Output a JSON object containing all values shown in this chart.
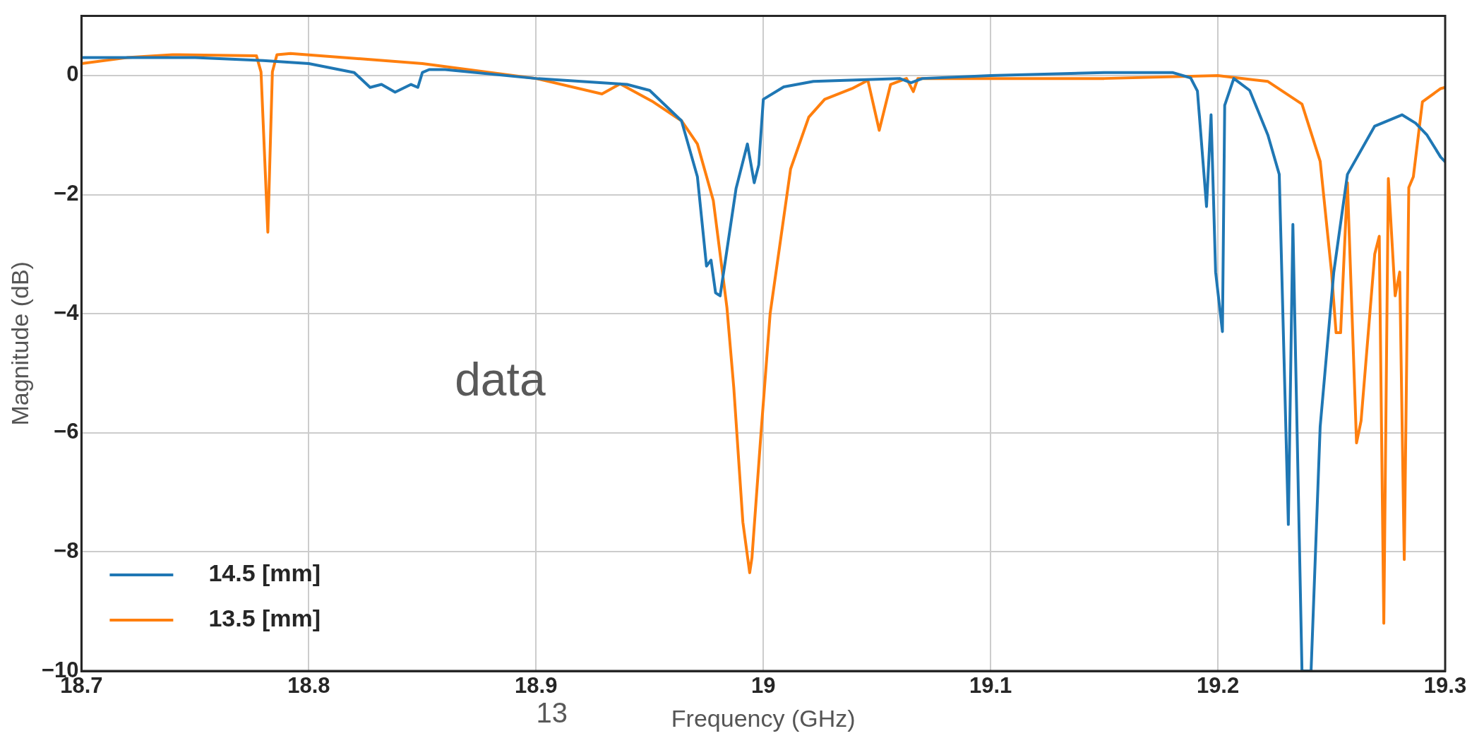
{
  "chart_data": {
    "type": "line",
    "xlabel": "Frequency (GHz)",
    "ylabel": "Magnitude (dB)",
    "xlim": [
      18.7,
      19.3
    ],
    "xticks": [
      18.7,
      18.8,
      18.9,
      19,
      19.1,
      19.2,
      19.3
    ],
    "ylim": [
      -10,
      1
    ],
    "yticks": [
      -10,
      -8,
      -6,
      -4,
      -2,
      0
    ],
    "grid": true,
    "legend": "bottom left",
    "marker": "none",
    "line_style": "solid",
    "annotations": [
      "data",
      "13"
    ],
    "series": [
      {
        "name": "14.5 [mm]",
        "color": "#1f77b4",
        "x": [
          18.7,
          18.75,
          18.78,
          18.8,
          18.82,
          18.827,
          18.832,
          18.838,
          18.845,
          18.848,
          18.85,
          18.853,
          18.86,
          18.9,
          18.94,
          18.95,
          18.964,
          18.971,
          18.975,
          18.977,
          18.979,
          18.981,
          18.988,
          18.993,
          18.996,
          18.998,
          19.0,
          19.009,
          19.022,
          19.06,
          19.065,
          19.07,
          19.1,
          19.15,
          19.18,
          19.188,
          19.191,
          19.195,
          19.197,
          19.199,
          19.202,
          19.203,
          19.207,
          19.214,
          19.222,
          19.227,
          19.231,
          19.233,
          19.237,
          19.241,
          19.245,
          19.251,
          19.257,
          19.269,
          19.281,
          19.287,
          19.292,
          19.298,
          19.3
        ],
        "values": [
          0.3,
          0.3,
          0.25,
          0.2,
          0.05,
          -0.2,
          -0.15,
          -0.28,
          -0.15,
          -0.2,
          0.05,
          0.1,
          0.1,
          -0.05,
          -0.15,
          -0.25,
          -0.76,
          -1.7,
          -3.2,
          -3.1,
          -3.65,
          -3.7,
          -1.9,
          -1.15,
          -1.8,
          -1.5,
          -0.4,
          -0.19,
          -0.1,
          -0.05,
          -0.12,
          -0.05,
          0.0,
          0.05,
          0.05,
          -0.04,
          -0.26,
          -2.2,
          -0.66,
          -3.3,
          -4.3,
          -0.5,
          -0.05,
          -0.25,
          -1.0,
          -1.66,
          -7.54,
          -2.5,
          -10,
          -10,
          -5.9,
          -3.3,
          -1.66,
          -0.85,
          -0.66,
          -0.8,
          -1.0,
          -1.37,
          -1.45
        ]
      },
      {
        "name": "13.5 [mm]",
        "color": "#ff7f0e",
        "x": [
          18.7,
          18.72,
          18.74,
          18.777,
          18.779,
          18.782,
          18.784,
          18.786,
          18.792,
          18.85,
          18.9,
          18.929,
          18.937,
          18.951,
          18.964,
          18.971,
          18.978,
          18.984,
          18.987,
          18.991,
          18.994,
          18.995,
          18.999,
          19.003,
          19.012,
          19.02,
          19.027,
          19.039,
          19.046,
          19.051,
          19.056,
          19.063,
          19.066,
          19.068,
          19.1,
          19.15,
          19.2,
          19.222,
          19.237,
          19.245,
          19.25,
          19.252,
          19.254,
          19.257,
          19.261,
          19.263,
          19.269,
          19.271,
          19.273,
          19.275,
          19.278,
          19.28,
          19.282,
          19.284,
          19.286,
          19.29,
          19.298,
          19.3
        ],
        "values": [
          0.2,
          0.3,
          0.35,
          0.33,
          0.06,
          -2.63,
          0.06,
          0.35,
          0.37,
          0.2,
          -0.05,
          -0.31,
          -0.14,
          -0.43,
          -0.76,
          -1.15,
          -2.1,
          -3.9,
          -5.24,
          -7.5,
          -8.35,
          -8.1,
          -6.0,
          -4.0,
          -1.57,
          -0.7,
          -0.4,
          -0.22,
          -0.08,
          -0.92,
          -0.15,
          -0.05,
          -0.27,
          -0.05,
          -0.05,
          -0.05,
          0.0,
          -0.1,
          -0.48,
          -1.44,
          -3.3,
          -4.32,
          -4.32,
          -1.8,
          -6.17,
          -5.8,
          -3.0,
          -2.7,
          -9.2,
          -1.73,
          -3.7,
          -3.3,
          -8.13,
          -1.88,
          -1.7,
          -0.44,
          -0.22,
          -0.2
        ]
      }
    ]
  }
}
